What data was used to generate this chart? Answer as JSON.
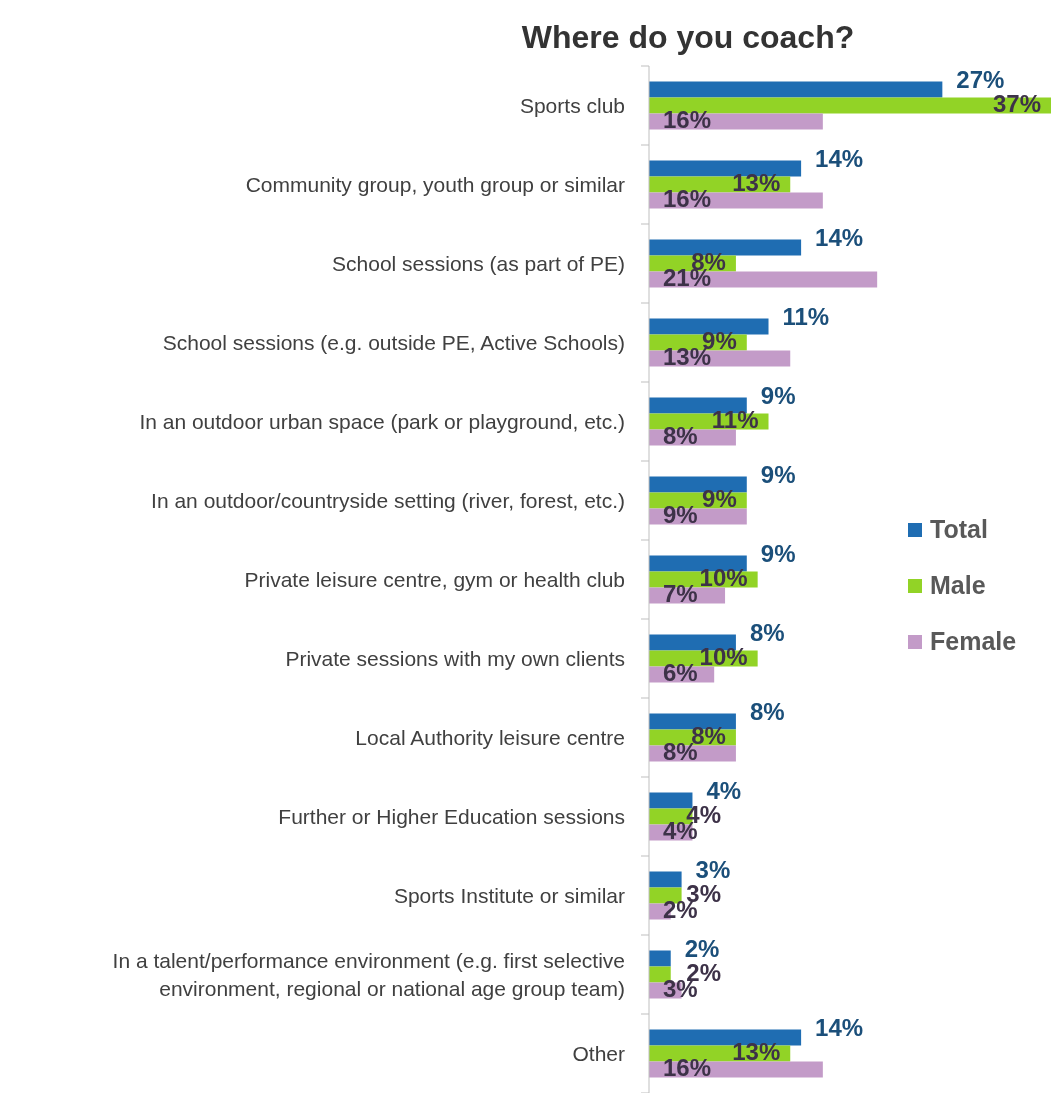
{
  "chart_data": {
    "type": "bar",
    "orientation": "horizontal",
    "title": "Where do you coach?",
    "categories": [
      "Sports club",
      "Community group, youth group or similar",
      "School sessions (as part of PE)",
      "School sessions (e.g. outside PE, Active Schools)",
      "In an outdoor urban space (park or playground, etc.)",
      "In an outdoor/countryside setting (river, forest, etc.)",
      "Private leisure centre, gym or health club",
      "Private sessions with my own clients",
      "Local Authority leisure centre",
      "Further or Higher Education sessions",
      "Sports Institute or similar",
      "In a talent/performance environment (e.g. first selective environment, regional or national age group team)",
      "Other"
    ],
    "series": [
      {
        "name": "Total",
        "color": "#1f6db2",
        "values": [
          27,
          14,
          14,
          11,
          9,
          9,
          9,
          8,
          8,
          4,
          3,
          2,
          14
        ],
        "value_labels": [
          "27%",
          "14%",
          "14%",
          "11%",
          "9%",
          "9%",
          "9%",
          "8%",
          "8%",
          "4%",
          "3%",
          "2%",
          "14%"
        ]
      },
      {
        "name": "Male",
        "color": "#92d326",
        "values": [
          37,
          13,
          8,
          9,
          11,
          9,
          10,
          10,
          8,
          4,
          3,
          2,
          13
        ],
        "value_labels": [
          "37%",
          "13%",
          "8%",
          "9%",
          "11%",
          "9%",
          "10%",
          "10%",
          "8%",
          "4%",
          "3%",
          "2%",
          "13%"
        ]
      },
      {
        "name": "Female",
        "color": "#c39bc8",
        "values": [
          16,
          16,
          21,
          13,
          8,
          9,
          7,
          6,
          8,
          4,
          2,
          3,
          16
        ],
        "value_labels": [
          "16%",
          "16%",
          "21%",
          "13%",
          "8%",
          "9%",
          "7%",
          "6%",
          "8%",
          "4%",
          "2%",
          "3%",
          "16%"
        ]
      }
    ],
    "xlim": [
      0,
      37
    ],
    "tick_labels": "y",
    "legend": "right"
  }
}
